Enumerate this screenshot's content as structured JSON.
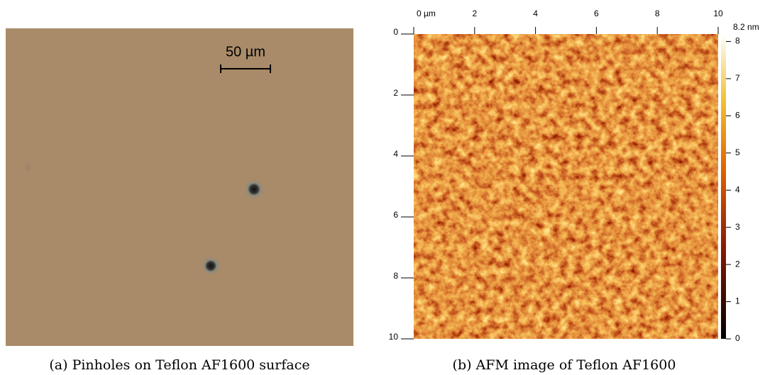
{
  "panels": [
    {
      "scale_bar_label": "50 µm",
      "caption": "(a) Pinholes on Teflon AF1600 surface"
    },
    {
      "caption": "(b) AFM image of Teflon AF1600",
      "xlim": [
        0,
        10
      ],
      "xticks": [
        {
          "value": 0,
          "label": "0 µm"
        },
        2,
        4,
        6,
        8,
        10
      ],
      "ylim": [
        0,
        10
      ],
      "yticks": [
        0,
        2,
        4,
        6,
        8,
        10
      ],
      "colorbar": {
        "lim": [
          0,
          8.2
        ],
        "ticks": [
          0,
          1,
          2,
          3,
          4,
          5,
          6,
          7,
          8,
          {
            "value": 8.2,
            "label": "8.2 nm"
          }
        ]
      }
    }
  ]
}
